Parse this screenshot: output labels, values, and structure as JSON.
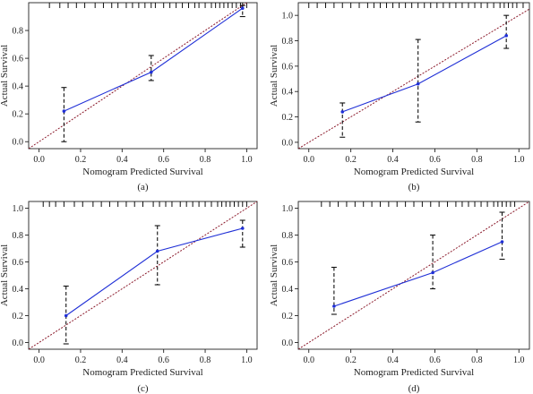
{
  "chart_data": [
    {
      "type": "line",
      "panel_label": "(a)",
      "xlabel": "Nomogram Predicted Survival",
      "ylabel": "Actual Survival",
      "xlim": [
        -0.05,
        1.05
      ],
      "ylim": [
        -0.05,
        1.0
      ],
      "xticks": [
        "0.0",
        "0.2",
        "0.4",
        "0.6",
        "0.8",
        "1.0"
      ],
      "yticks": [
        "0.0",
        "0.2",
        "0.4",
        "0.6",
        "0.8"
      ],
      "grid": false,
      "series": [
        {
          "style": "calibration",
          "color": "#1f2fd6",
          "x": [
            0.12,
            0.54,
            0.98
          ],
          "y": [
            0.22,
            0.5,
            0.96
          ],
          "ci_low": [
            0.0,
            0.44,
            0.9
          ],
          "ci_high": [
            0.39,
            0.62,
            0.98
          ]
        },
        {
          "style": "ideal",
          "color": "#8b1a2b",
          "x": [
            -0.05,
            1.05
          ],
          "y": [
            -0.05,
            1.05
          ]
        }
      ],
      "rug": [
        0.05,
        0.1,
        0.14,
        0.18,
        0.22,
        0.27,
        0.31,
        0.35,
        0.38,
        0.42,
        0.45,
        0.48,
        0.51,
        0.54,
        0.56,
        0.6,
        0.63,
        0.66,
        0.69,
        0.72,
        0.75,
        0.77,
        0.8,
        0.83,
        0.85,
        0.87,
        0.89,
        0.91,
        0.93,
        0.95,
        0.97,
        0.98,
        1.0
      ]
    },
    {
      "type": "line",
      "panel_label": "(b)",
      "xlabel": "Nomogram Predicted Survival",
      "ylabel": "Actual Survival",
      "xlim": [
        -0.05,
        1.05
      ],
      "ylim": [
        -0.05,
        1.1
      ],
      "xticks": [
        "0.0",
        "0.2",
        "0.4",
        "0.6",
        "0.8",
        "1.0"
      ],
      "yticks": [
        "0.0",
        "0.2",
        "0.4",
        "0.6",
        "0.8",
        "1.0"
      ],
      "grid": false,
      "series": [
        {
          "style": "calibration",
          "color": "#1f2fd6",
          "x": [
            0.16,
            0.52,
            0.94
          ],
          "y": [
            0.24,
            0.46,
            0.84
          ],
          "ci_low": [
            0.04,
            0.16,
            0.74
          ],
          "ci_high": [
            0.31,
            0.81,
            1.0
          ]
        },
        {
          "style": "ideal",
          "color": "#8b1a2b",
          "x": [
            -0.05,
            1.05
          ],
          "y": [
            -0.05,
            1.05
          ]
        }
      ],
      "rug": [
        0.0,
        0.04,
        0.08,
        0.12,
        0.16,
        0.2,
        0.24,
        0.28,
        0.31,
        0.34,
        0.37,
        0.4,
        0.43,
        0.46,
        0.49,
        0.52,
        0.55,
        0.58,
        0.61,
        0.64,
        0.67,
        0.7,
        0.73,
        0.76,
        0.79,
        0.82,
        0.85,
        0.88,
        0.91,
        0.93,
        0.95,
        0.97,
        0.99,
        1.02
      ]
    },
    {
      "type": "line",
      "panel_label": "(c)",
      "xlabel": "Nomogram Predicted Survival",
      "ylabel": "Actual Survival",
      "xlim": [
        -0.05,
        1.05
      ],
      "ylim": [
        -0.05,
        1.05
      ],
      "xticks": [
        "0.0",
        "0.2",
        "0.4",
        "0.6",
        "0.8",
        "1.0"
      ],
      "yticks": [
        "0.0",
        "0.2",
        "0.4",
        "0.6",
        "0.8",
        "1.0"
      ],
      "grid": false,
      "series": [
        {
          "style": "calibration",
          "color": "#1f2fd6",
          "x": [
            0.13,
            0.57,
            0.98
          ],
          "y": [
            0.2,
            0.68,
            0.85
          ],
          "ci_low": [
            -0.01,
            0.43,
            0.71
          ],
          "ci_high": [
            0.42,
            0.87,
            0.91
          ]
        },
        {
          "style": "ideal",
          "color": "#8b1a2b",
          "x": [
            -0.05,
            1.05
          ],
          "y": [
            -0.05,
            1.05
          ]
        }
      ],
      "rug": [
        0.02,
        0.05,
        0.08,
        0.12,
        0.17,
        0.21,
        0.26,
        0.3,
        0.34,
        0.38,
        0.42,
        0.46,
        0.5,
        0.55,
        0.58,
        0.61,
        0.64,
        0.68,
        0.71,
        0.74,
        0.77,
        0.8,
        0.83,
        0.86,
        0.88,
        0.9,
        0.92,
        0.94,
        0.96,
        0.98,
        1.0
      ]
    },
    {
      "type": "line",
      "panel_label": "(d)",
      "xlabel": "Nomogram Predicted Survival",
      "ylabel": "Actual Survival",
      "xlim": [
        -0.05,
        1.05
      ],
      "ylim": [
        -0.05,
        1.05
      ],
      "xticks": [
        "0.0",
        "0.2",
        "0.4",
        "0.6",
        "0.8",
        "1.0"
      ],
      "yticks": [
        "0.0",
        "0.2",
        "0.4",
        "0.6",
        "0.8",
        "1.0"
      ],
      "grid": false,
      "series": [
        {
          "style": "calibration",
          "color": "#1f2fd6",
          "x": [
            0.12,
            0.59,
            0.92
          ],
          "y": [
            0.27,
            0.52,
            0.75
          ],
          "ci_low": [
            0.21,
            0.4,
            0.62
          ],
          "ci_high": [
            0.56,
            0.8,
            0.97
          ]
        },
        {
          "style": "ideal",
          "color": "#8b1a2b",
          "x": [
            -0.05,
            1.05
          ],
          "y": [
            -0.05,
            1.05
          ]
        }
      ],
      "rug": [
        0.06,
        0.1,
        0.14,
        0.18,
        0.22,
        0.26,
        0.3,
        0.34,
        0.38,
        0.42,
        0.46,
        0.5,
        0.54,
        0.58,
        0.62,
        0.66,
        0.7,
        0.73,
        0.76,
        0.79,
        0.82,
        0.85,
        0.88,
        0.9,
        0.92,
        0.94,
        0.96,
        0.98
      ]
    }
  ]
}
